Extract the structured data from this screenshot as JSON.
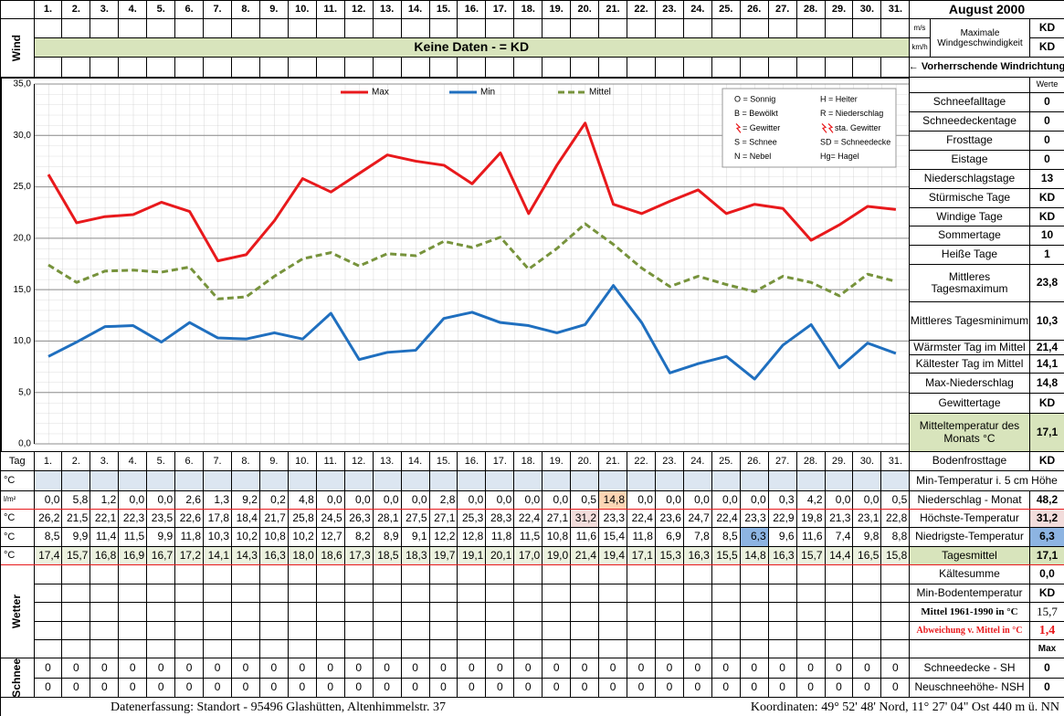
{
  "header": {
    "title": "August 2000"
  },
  "wind": {
    "label": "Wind",
    "units": [
      "m/s",
      "km/h"
    ],
    "max_label": "Maximale Windgeschwindigkeit",
    "max_values": [
      "KD",
      "KD"
    ],
    "banner": "Keine Daten -  = KD",
    "direction": "← Vorherrschende Windrichtung"
  },
  "chart_data": {
    "type": "line",
    "categories": [
      "1.",
      "2.",
      "3.",
      "4.",
      "5.",
      "6.",
      "7.",
      "8.",
      "9.",
      "10.",
      "11.",
      "12.",
      "13.",
      "14.",
      "15.",
      "16.",
      "17.",
      "18.",
      "19.",
      "20.",
      "21.",
      "22.",
      "23.",
      "24.",
      "25.",
      "26.",
      "27.",
      "28.",
      "29.",
      "30.",
      "31."
    ],
    "series": [
      {
        "name": "Max",
        "color": "#e8191c",
        "values": [
          26.2,
          21.5,
          22.1,
          22.3,
          23.5,
          22.6,
          17.8,
          18.4,
          21.7,
          25.8,
          24.5,
          26.3,
          28.1,
          27.5,
          27.1,
          25.3,
          28.3,
          22.4,
          27.1,
          31.2,
          23.3,
          22.4,
          23.6,
          24.7,
          22.4,
          23.3,
          22.9,
          19.8,
          21.3,
          23.1,
          22.8
        ],
        "value_labels": [
          "26,2",
          "21,5",
          "22,1",
          "22,3",
          "23,5",
          "22,6",
          "17,8",
          "18,4",
          "21,7",
          "25,8",
          "24,5",
          "26,3",
          "28,1",
          "27,5",
          "27,1",
          "25,3",
          "28,3",
          "22,4",
          "27,1",
          "31,2",
          "23,3",
          "22,4",
          "23,6",
          "24,7",
          "22,4",
          "23,3",
          "22,9",
          "19,8",
          "21,3",
          "23,1",
          "22,8"
        ]
      },
      {
        "name": "Min",
        "color": "#1f6fbf",
        "values": [
          8.5,
          9.9,
          11.4,
          11.5,
          9.9,
          11.8,
          10.3,
          10.2,
          10.8,
          10.2,
          12.7,
          8.2,
          8.9,
          9.1,
          12.2,
          12.8,
          11.8,
          11.5,
          10.8,
          11.6,
          15.4,
          11.8,
          6.9,
          7.8,
          8.5,
          6.3,
          9.6,
          11.6,
          7.4,
          9.8,
          8.8
        ],
        "value_labels": [
          "8,5",
          "9,9",
          "11,4",
          "11,5",
          "9,9",
          "11,8",
          "10,3",
          "10,2",
          "10,8",
          "10,2",
          "12,7",
          "8,2",
          "8,9",
          "9,1",
          "12,2",
          "12,8",
          "11,8",
          "11,5",
          "10,8",
          "11,6",
          "15,4",
          "11,8",
          "6,9",
          "7,8",
          "8,5",
          "6,3",
          "9,6",
          "11,6",
          "7,4",
          "9,8",
          "8,8"
        ]
      },
      {
        "name": "Mittel",
        "color": "#77933c",
        "dashed": true,
        "values": [
          17.4,
          15.7,
          16.8,
          16.9,
          16.7,
          17.2,
          14.1,
          14.3,
          16.3,
          18.0,
          18.6,
          17.3,
          18.5,
          18.3,
          19.7,
          19.1,
          20.1,
          17.0,
          19.0,
          21.4,
          19.4,
          17.1,
          15.3,
          16.3,
          15.5,
          14.8,
          16.3,
          15.7,
          14.4,
          16.5,
          15.8
        ],
        "value_labels": [
          "17,4",
          "15,7",
          "16,8",
          "16,9",
          "16,7",
          "17,2",
          "14,1",
          "14,3",
          "16,3",
          "18,0",
          "18,6",
          "17,3",
          "18,5",
          "18,3",
          "19,7",
          "19,1",
          "20,1",
          "17,0",
          "19,0",
          "21,4",
          "19,4",
          "17,1",
          "15,3",
          "16,3",
          "15,5",
          "14,8",
          "16,3",
          "15,7",
          "14,4",
          "16,5",
          "15,8"
        ]
      }
    ],
    "ylim": [
      0,
      35
    ],
    "yticks": [
      {
        "value": 0,
        "label": "0,0"
      },
      {
        "value": 5,
        "label": "5,0"
      },
      {
        "value": 10,
        "label": "10,0"
      },
      {
        "value": 15,
        "label": "15,0"
      },
      {
        "value": 20,
        "label": "20,0"
      },
      {
        "value": 25,
        "label": "25,0"
      },
      {
        "value": 30,
        "label": "30,0"
      },
      {
        "value": 35,
        "label": "35,0"
      }
    ],
    "grid": true,
    "legend": "top",
    "weather_codes": [
      "O = Sonnig",
      "H = Heiter",
      "B = Bewölkt",
      "R = Niederschlag",
      "= Gewitter",
      "sta. Gewitter",
      "S = Schnee",
      "SD = Schneedecke",
      "N = Nebel",
      "Hg= Hagel"
    ]
  },
  "summary": {
    "column_label": "Werte",
    "rows": [
      {
        "label": "Schneefalltage",
        "value": "0"
      },
      {
        "label": "Schneedeckentage",
        "value": "0"
      },
      {
        "label": "Frosttage",
        "value": "0"
      },
      {
        "label": "Eistage",
        "value": "0"
      },
      {
        "label": "Niederschlagstage",
        "value": "13"
      },
      {
        "label": "Stürmische Tage",
        "value": "KD"
      },
      {
        "label": "Windige Tage",
        "value": "KD"
      },
      {
        "label": "Sommertage",
        "value": "10"
      },
      {
        "label": "Heiße Tage",
        "value": "1"
      },
      {
        "label": "Mittleres Tagesmaximum",
        "value": "23,8"
      },
      {
        "label": "Mittleres Tagesminimum",
        "value": "10,3"
      },
      {
        "label": "Wärmster Tag im Mittel",
        "value": "21,4"
      },
      {
        "label": "Kältester Tag im Mittel",
        "value": "14,1"
      },
      {
        "label": "Max-Niederschlag",
        "value": "14,8"
      },
      {
        "label": "Gewittertage",
        "value": "KD"
      },
      {
        "label": "Mitteltemperatur des Monats °C",
        "value": "17,1"
      },
      {
        "label": "Bodenfrosttage",
        "value": "KD"
      },
      {
        "label": "Min-Temperatur i. 5 cm Höhe"
      },
      {
        "label": "Niederschlag - Monat",
        "value": "48,2"
      },
      {
        "label": "Höchste-Temperatur",
        "value": "31,2"
      },
      {
        "label": "Niedrigste-Temperatur",
        "value": "6,3"
      },
      {
        "label": "Tagesmittel",
        "value": "17,1"
      },
      {
        "label": "Kältesumme",
        "value": "0,0"
      },
      {
        "label": "Min-Bodentemperatur",
        "value": "KD"
      },
      {
        "label": "Mittel 1961-1990 in °C",
        "value": "15,7"
      },
      {
        "label": "Abweichung v. Mittel in °C",
        "value": "1,4"
      },
      {
        "value": "Max"
      },
      {
        "label": "Schneedecke -  SH",
        "value": "0"
      },
      {
        "label": "Neuschneehöhe- NSH",
        "value": "0"
      }
    ]
  },
  "table": {
    "day_label": "Tag",
    "units": [
      "°C",
      "l/m²",
      "°C",
      "°C",
      "°C"
    ],
    "precipitation": {
      "values": [
        0.0,
        5.8,
        1.2,
        0.0,
        0.0,
        2.6,
        1.3,
        9.2,
        0.2,
        4.8,
        0.0,
        0.0,
        0.0,
        0.0,
        2.8,
        0.0,
        0.0,
        0.0,
        0.0,
        0.5,
        14.8,
        0.0,
        0.0,
        0.0,
        0.0,
        0.0,
        0.3,
        4.2,
        0.0,
        0.0,
        0.5
      ],
      "value_labels": [
        "0,0",
        "5,8",
        "1,2",
        "0,0",
        "0,0",
        "2,6",
        "1,3",
        "9,2",
        "0,2",
        "4,8",
        "0,0",
        "0,0",
        "0,0",
        "0,0",
        "2,8",
        "0,0",
        "0,0",
        "0,0",
        "0,0",
        "0,5",
        "14,8",
        "0,0",
        "0,0",
        "0,0",
        "0,0",
        "0,0",
        "0,3",
        "4,2",
        "0,0",
        "0,0",
        "0,5"
      ]
    },
    "weather_label": "Wetter",
    "snow_label": "Schnee",
    "snow": [
      [
        0,
        0,
        0,
        0,
        0,
        0,
        0,
        0,
        0,
        0,
        0,
        0,
        0,
        0,
        0,
        0,
        0,
        0,
        0,
        0,
        0,
        0,
        0,
        0,
        0,
        0,
        0,
        0,
        0,
        0,
        0
      ],
      [
        0,
        0,
        0,
        0,
        0,
        0,
        0,
        0,
        0,
        0,
        0,
        0,
        0,
        0,
        0,
        0,
        0,
        0,
        0,
        0,
        0,
        0,
        0,
        0,
        0,
        0,
        0,
        0,
        0,
        0,
        0
      ]
    ]
  },
  "footer": {
    "left": "Datenerfassung:  Standort -  95496  Glashütten, Altenhimmelstr. 37",
    "right": "Koordinaten:  49° 52' 48' Nord,  11° 27' 04\" Ost   440 m ü. NN"
  }
}
